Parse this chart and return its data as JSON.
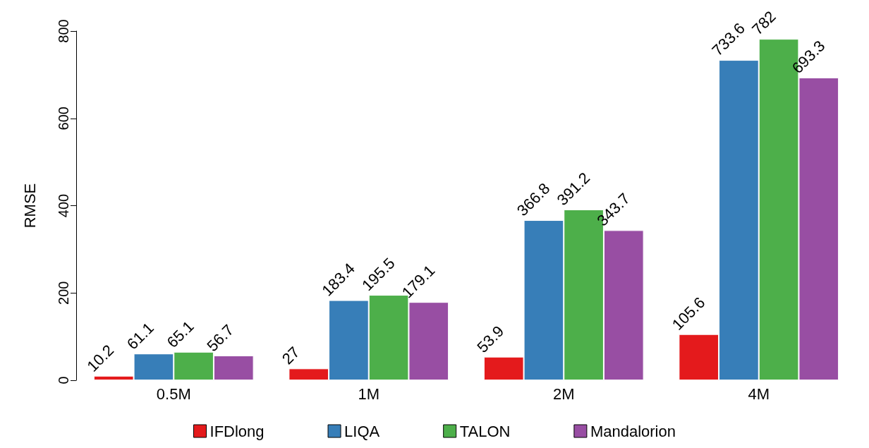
{
  "chart_data": {
    "type": "bar",
    "ylabel": "RMSE",
    "categories": [
      "0.5M",
      "1M",
      "2M",
      "4M"
    ],
    "series": [
      {
        "name": "IFDlong",
        "color": "#e41a1c",
        "values": [
          10.2,
          27,
          53.9,
          105.6
        ]
      },
      {
        "name": "LIQA",
        "color": "#377eb8",
        "values": [
          61.1,
          183.4,
          366.8,
          733.6
        ]
      },
      {
        "name": "TALON",
        "color": "#4daf4a",
        "values": [
          65.1,
          195.5,
          391.2,
          782
        ]
      },
      {
        "name": "Mandalorion",
        "color": "#984ea3",
        "values": [
          56.7,
          179.1,
          343.7,
          693.3
        ]
      }
    ],
    "ylim": [
      0,
      800
    ],
    "yticks": [
      0,
      200,
      400,
      600,
      800
    ],
    "grid": false,
    "legend": "bottom",
    "data_labels": true
  }
}
